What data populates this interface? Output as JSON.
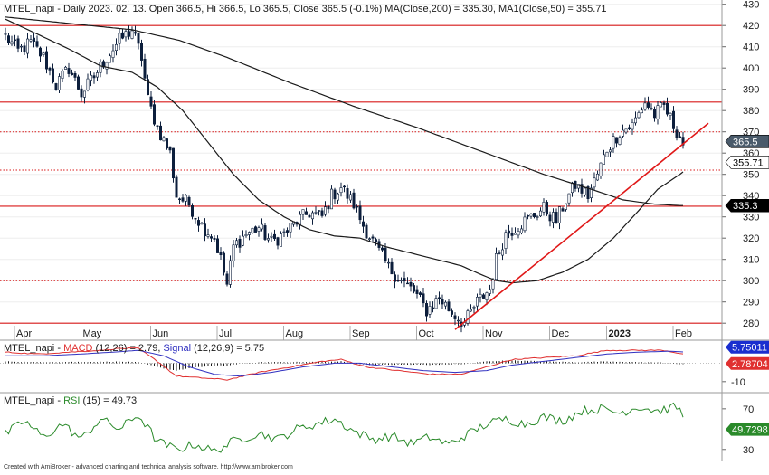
{
  "chart_data": [
    {
      "type": "candlestick",
      "header_text": "MTEL_napi - Daily 2023. 02. 13. Open 366.5, Hi 366.5, Lo 365.5, Close 365.5 (-0.1%) MA(Close,200) = 335.30, MA1(Close,50) = 355.71",
      "symbol": "MTEL_napi",
      "ylim": [
        272,
        432
      ],
      "y_ticks": [
        280,
        290,
        300,
        310,
        320,
        330,
        340,
        350,
        360,
        370,
        380,
        390,
        400,
        410,
        420,
        430
      ],
      "x_ticks": [
        "Apr",
        "May",
        "Jun",
        "Jul",
        "Aug",
        "Sep",
        "Oct",
        "Nov",
        "Dec",
        "2023",
        "Feb"
      ],
      "x_tick_index": [
        4,
        25,
        47,
        68,
        89,
        110,
        131,
        152,
        173,
        191,
        212
      ],
      "bars": 227,
      "anchors": [
        [
          0,
          415
        ],
        [
          4,
          408
        ],
        [
          8,
          412
        ],
        [
          12,
          405
        ],
        [
          16,
          392
        ],
        [
          20,
          400
        ],
        [
          24,
          388
        ],
        [
          28,
          396
        ],
        [
          32,
          405
        ],
        [
          36,
          413
        ],
        [
          40,
          418
        ],
        [
          43,
          405
        ],
        [
          45,
          385
        ],
        [
          48,
          372
        ],
        [
          52,
          360
        ],
        [
          54,
          340
        ],
        [
          58,
          336
        ],
        [
          62,
          326
        ],
        [
          66,
          320
        ],
        [
          68,
          310
        ],
        [
          70,
          298
        ],
        [
          72,
          316
        ],
        [
          76,
          322
        ],
        [
          80,
          325
        ],
        [
          84,
          318
        ],
        [
          88,
          322
        ],
        [
          92,
          328
        ],
        [
          96,
          332
        ],
        [
          100,
          330
        ],
        [
          103,
          340
        ],
        [
          106,
          344
        ],
        [
          110,
          336
        ],
        [
          113,
          326
        ],
        [
          117,
          316
        ],
        [
          121,
          306
        ],
        [
          125,
          300
        ],
        [
          129,
          295
        ],
        [
          133,
          286
        ],
        [
          137,
          292
        ],
        [
          141,
          285
        ],
        [
          145,
          280
        ],
        [
          149,
          290
        ],
        [
          153,
          296
        ],
        [
          155,
          310
        ],
        [
          158,
          322
        ],
        [
          162,
          326
        ],
        [
          166,
          330
        ],
        [
          170,
          334
        ],
        [
          174,
          328
        ],
        [
          177,
          338
        ],
        [
          180,
          345
        ],
        [
          184,
          340
        ],
        [
          187,
          350
        ],
        [
          190,
          362
        ],
        [
          194,
          370
        ],
        [
          198,
          373
        ],
        [
          202,
          384
        ],
        [
          205,
          378
        ],
        [
          208,
          382
        ],
        [
          211,
          373
        ],
        [
          213,
          368
        ],
        [
          215,
          361
        ],
        [
          218,
          365.5
        ]
      ],
      "ma200_anchors": [
        [
          0,
          424
        ],
        [
          20,
          421
        ],
        [
          40,
          418
        ],
        [
          55,
          413
        ],
        [
          70,
          405
        ],
        [
          90,
          393
        ],
        [
          110,
          382
        ],
        [
          130,
          372
        ],
        [
          150,
          361
        ],
        [
          170,
          350
        ],
        [
          185,
          343
        ],
        [
          195,
          338
        ],
        [
          205,
          336
        ],
        [
          213,
          335.3
        ]
      ],
      "ma50_anchors": [
        [
          0,
          423
        ],
        [
          10,
          416
        ],
        [
          20,
          409
        ],
        [
          30,
          401
        ],
        [
          40,
          398
        ],
        [
          48,
          391
        ],
        [
          56,
          380
        ],
        [
          64,
          365
        ],
        [
          72,
          350
        ],
        [
          80,
          338
        ],
        [
          88,
          330
        ],
        [
          96,
          324
        ],
        [
          104,
          321
        ],
        [
          112,
          320
        ],
        [
          120,
          316
        ],
        [
          128,
          313
        ],
        [
          136,
          310
        ],
        [
          144,
          307
        ],
        [
          150,
          303
        ],
        [
          155,
          300
        ],
        [
          160,
          299
        ],
        [
          168,
          300
        ],
        [
          176,
          304
        ],
        [
          184,
          310
        ],
        [
          192,
          320
        ],
        [
          200,
          333
        ],
        [
          206,
          343
        ],
        [
          213,
          350
        ],
        [
          218,
          355.71
        ]
      ],
      "hlines_solid": [
        420,
        384,
        335,
        280
      ],
      "hlines_dotted": [
        370,
        352,
        300
      ],
      "trendline": [
        [
          142,
          277
        ],
        [
          222,
          374
        ]
      ],
      "price_badges": [
        {
          "label": "365.5",
          "value": 365.5,
          "bg": "#4a5b6b",
          "fg": "#ffffff"
        },
        {
          "label": "355.71",
          "value": 355.71,
          "bg": "#ffffff",
          "fg": "#000000"
        },
        {
          "label": "335.3",
          "value": 335.3,
          "bg": "#000000",
          "fg": "#ffffff"
        }
      ],
      "colors": {
        "candle": "#0d1f3c",
        "hline": "#d91a1a",
        "ma": "#1a1a1a",
        "trend": "#e01818",
        "grid": "#eeeeee"
      }
    },
    {
      "type": "line",
      "header_symbol": "MTEL_napi",
      "label_parts": [
        "MACD",
        "(12,26)",
        " = 2.79, ",
        "Signal",
        "(12,26,9)",
        " = 5.75"
      ],
      "ylim": [
        -15,
        12
      ],
      "ticks": [
        {
          "value": -10,
          "label": "-10"
        }
      ],
      "zero_line": 0,
      "anchors_macd": [
        [
          0,
          6
        ],
        [
          10,
          5
        ],
        [
          20,
          6
        ],
        [
          30,
          7
        ],
        [
          36,
          8
        ],
        [
          42,
          8
        ],
        [
          48,
          1
        ],
        [
          54,
          -7
        ],
        [
          62,
          -8
        ],
        [
          70,
          -9
        ],
        [
          80,
          -5
        ],
        [
          90,
          -2
        ],
        [
          100,
          1
        ],
        [
          106,
          2
        ],
        [
          114,
          -2
        ],
        [
          124,
          -4
        ],
        [
          134,
          -6
        ],
        [
          144,
          -6
        ],
        [
          152,
          -2
        ],
        [
          160,
          2
        ],
        [
          170,
          3
        ],
        [
          180,
          4
        ],
        [
          190,
          7
        ],
        [
          200,
          7
        ],
        [
          208,
          7
        ],
        [
          214,
          5
        ],
        [
          218,
          2.79
        ]
      ],
      "anchors_signal": [
        [
          0,
          4
        ],
        [
          12,
          4
        ],
        [
          24,
          5
        ],
        [
          34,
          6
        ],
        [
          42,
          7
        ],
        [
          50,
          4
        ],
        [
          58,
          -2
        ],
        [
          66,
          -6
        ],
        [
          74,
          -7
        ],
        [
          84,
          -5
        ],
        [
          94,
          -2
        ],
        [
          104,
          0
        ],
        [
          112,
          0
        ],
        [
          122,
          -2
        ],
        [
          132,
          -4
        ],
        [
          142,
          -5
        ],
        [
          152,
          -4
        ],
        [
          160,
          -1
        ],
        [
          170,
          1
        ],
        [
          180,
          3
        ],
        [
          190,
          5
        ],
        [
          200,
          6
        ],
        [
          210,
          6.5
        ],
        [
          218,
          5.75
        ]
      ],
      "series": [
        {
          "name": "MACD",
          "color": "#e03030"
        },
        {
          "name": "Signal",
          "color": "#3030c0"
        }
      ],
      "badges": [
        {
          "label": "5.75011",
          "value": 5.75,
          "bg": "#1a2ecf",
          "fg": "#ffffff"
        },
        {
          "label": "2.78704",
          "value": 2.79,
          "bg": "#e03030",
          "fg": "#ffffff"
        }
      ]
    },
    {
      "type": "line",
      "header_symbol": "MTEL_napi",
      "label_parts": [
        "RSI",
        "(15)",
        " = 49.73"
      ],
      "ylim": [
        20,
        85
      ],
      "ticks": [
        {
          "value": 70,
          "label": "70"
        },
        {
          "value": 30,
          "label": "30"
        }
      ],
      "anchors_rsi": [
        [
          0,
          45
        ],
        [
          6,
          58
        ],
        [
          12,
          42
        ],
        [
          18,
          55
        ],
        [
          24,
          40
        ],
        [
          30,
          60
        ],
        [
          36,
          50
        ],
        [
          42,
          64
        ],
        [
          48,
          38
        ],
        [
          54,
          30
        ],
        [
          60,
          35
        ],
        [
          66,
          28
        ],
        [
          72,
          38
        ],
        [
          80,
          46
        ],
        [
          86,
          40
        ],
        [
          92,
          50
        ],
        [
          98,
          55
        ],
        [
          104,
          60
        ],
        [
          110,
          48
        ],
        [
          116,
          40
        ],
        [
          122,
          43
        ],
        [
          128,
          36
        ],
        [
          134,
          42
        ],
        [
          140,
          35
        ],
        [
          146,
          45
        ],
        [
          152,
          55
        ],
        [
          158,
          60
        ],
        [
          164,
          55
        ],
        [
          170,
          62
        ],
        [
          176,
          58
        ],
        [
          182,
          68
        ],
        [
          188,
          70
        ],
        [
          194,
          66
        ],
        [
          200,
          72
        ],
        [
          206,
          68
        ],
        [
          212,
          72
        ],
        [
          216,
          55
        ],
        [
          218,
          49.73
        ]
      ],
      "color": "#2a8a2a",
      "badge": {
        "label": "49.7298",
        "value": 49.73,
        "bg": "#2a8a2a",
        "fg": "#ffffff"
      }
    }
  ],
  "footer": "Created with AmiBroker - advanced charting and technical analysis software. http://www.amibroker.com"
}
